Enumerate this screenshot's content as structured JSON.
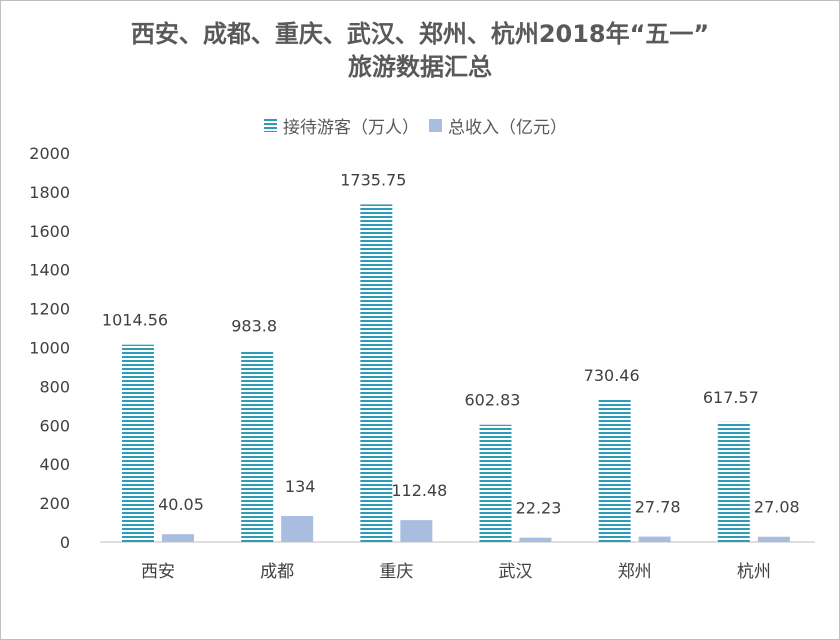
{
  "title_line1": "西安、成都、重庆、武汉、郑州、杭州2018年“五一”",
  "title_line2": "旅游数据汇总",
  "chart_data": {
    "type": "bar",
    "categories": [
      "西安",
      "成都",
      "重庆",
      "武汉",
      "郑州",
      "杭州"
    ],
    "series": [
      {
        "name": "接待游客（万人）",
        "values": [
          1014.56,
          983.8,
          1735.75,
          602.83,
          730.46,
          617.57
        ],
        "color": "#2e9cb5",
        "pattern": "horizontal-stripes"
      },
      {
        "name": "总收入（亿元）",
        "values": [
          40.05,
          134,
          112.48,
          22.23,
          27.78,
          27.08
        ],
        "color": "#a9bde0"
      }
    ],
    "value_labels": [
      [
        "1014.56",
        "983.8",
        "1735.75",
        "602.83",
        "730.46",
        "617.57"
      ],
      [
        "40.05",
        "134",
        "112.48",
        "22.23",
        "27.78",
        "27.08"
      ]
    ],
    "ylim": [
      0,
      2000
    ],
    "yticks": [
      "0",
      "200",
      "400",
      "600",
      "800",
      "1000",
      "1200",
      "1400",
      "1600",
      "1800",
      "2000"
    ],
    "grid": false,
    "legend_position": "top"
  }
}
